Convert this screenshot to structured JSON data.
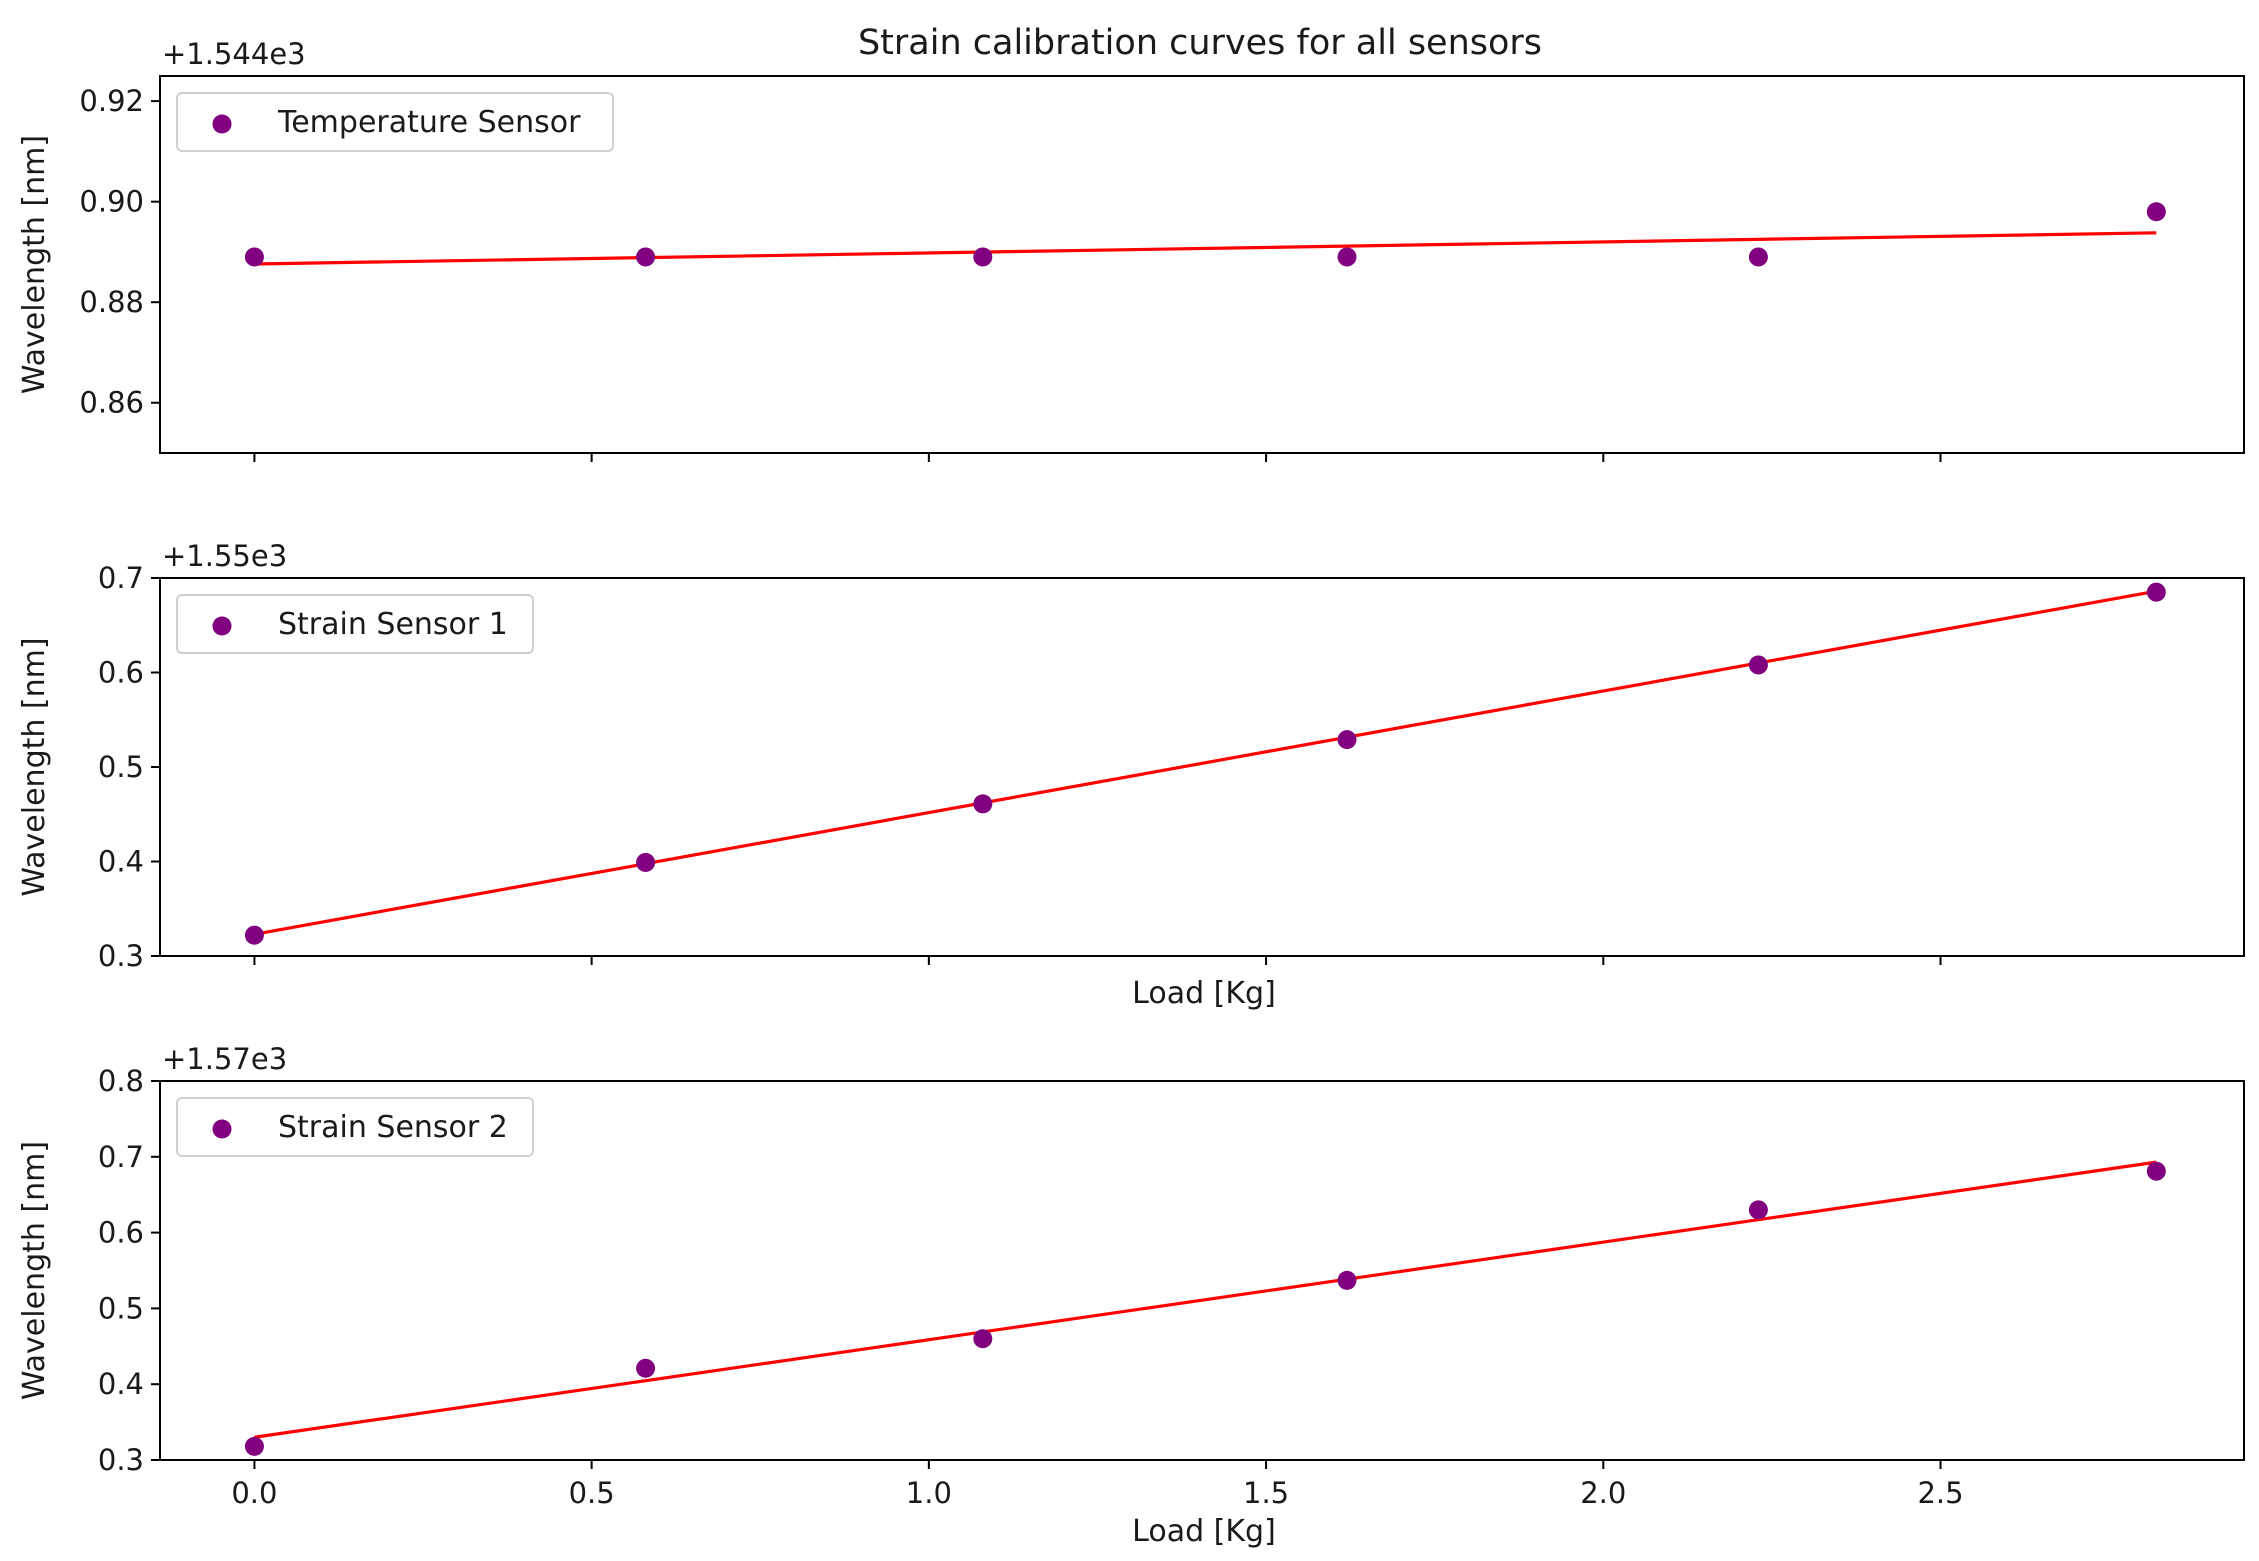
{
  "chart_data": {
    "type": "scatter",
    "title": "Strain calibration curves for all sensors",
    "shared_x": true,
    "xlim": [
      -0.14,
      2.95
    ],
    "x_ticks": [
      0.0,
      0.5,
      1.0,
      1.5,
      2.0,
      2.5
    ],
    "x_tick_labels": [
      "0.0",
      "0.5",
      "1.0",
      "1.5",
      "2.0",
      "2.5"
    ],
    "colors": {
      "points": "#800080",
      "fit": "#ff0000"
    },
    "panels": [
      {
        "label": "Temperature Sensor",
        "offset_text": "+1.544e3",
        "ylabel": "Wavelength [nm]",
        "xlabel": "",
        "ylim": [
          0.85,
          0.925
        ],
        "y_ticks": [
          0.86,
          0.88,
          0.9,
          0.92
        ],
        "y_tick_labels": [
          "0.86",
          "0.88",
          "0.90",
          "0.92"
        ],
        "x": [
          0.0,
          0.58,
          1.08,
          1.62,
          2.23,
          2.82
        ],
        "y": [
          0.889,
          0.889,
          0.889,
          0.889,
          0.889,
          0.898
        ],
        "fit": {
          "x": [
            0.0,
            2.82
          ],
          "y": [
            0.8876,
            0.8938
          ]
        }
      },
      {
        "label": "Strain Sensor 1",
        "offset_text": "+1.55e3",
        "ylabel": "Wavelength [nm]",
        "xlabel": "Load [Kg]",
        "ylim": [
          0.3,
          0.7
        ],
        "y_ticks": [
          0.3,
          0.4,
          0.5,
          0.6,
          0.7
        ],
        "y_tick_labels": [
          "0.3",
          "0.4",
          "0.5",
          "0.6",
          "0.7"
        ],
        "x": [
          0.0,
          0.58,
          1.08,
          1.62,
          2.23,
          2.82
        ],
        "y": [
          0.322,
          0.399,
          0.461,
          0.529,
          0.608,
          0.685
        ],
        "fit": {
          "x": [
            0.0,
            2.82
          ],
          "y": [
            0.323,
            0.686
          ]
        }
      },
      {
        "label": "Strain Sensor 2",
        "offset_text": "+1.57e3",
        "ylabel": "Wavelength [nm]",
        "xlabel": "Load [Kg]",
        "ylim": [
          0.3,
          0.8
        ],
        "y_ticks": [
          0.3,
          0.4,
          0.5,
          0.6,
          0.7,
          0.8
        ],
        "y_tick_labels": [
          "0.3",
          "0.4",
          "0.5",
          "0.6",
          "0.7",
          "0.8"
        ],
        "x": [
          0.0,
          0.58,
          1.08,
          1.62,
          2.23,
          2.82
        ],
        "y": [
          0.318,
          0.421,
          0.46,
          0.537,
          0.63,
          0.681
        ],
        "fit": {
          "x": [
            0.0,
            2.82
          ],
          "y": [
            0.33,
            0.693
          ]
        }
      }
    ]
  }
}
